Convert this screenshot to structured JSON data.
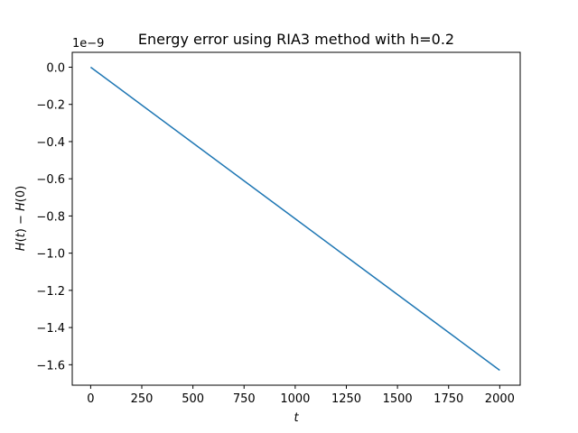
{
  "chart_data": {
    "type": "line",
    "title": "Energy error using RIA3 method with h=0.2",
    "xlabel": "t",
    "ylabel": "H(t) − H(0)",
    "y_offset_label": "1e−9",
    "xlim": [
      -90,
      2100
    ],
    "ylim": [
      -1.71,
      0.08
    ],
    "x_ticks": [
      0,
      250,
      500,
      750,
      1000,
      1250,
      1500,
      1750,
      2000
    ],
    "y_ticks": [
      0.0,
      -0.2,
      -0.4,
      -0.6,
      -0.8,
      -1.0,
      -1.2,
      -1.4,
      -1.6
    ],
    "x_tick_labels": [
      "0",
      "250",
      "500",
      "750",
      "1000",
      "1250",
      "1500",
      "1750",
      "2000"
    ],
    "y_tick_labels": [
      "0.0",
      "−0.2",
      "−0.4",
      "−0.6",
      "−0.8",
      "−1.0",
      "−1.2",
      "−1.4",
      "−1.6"
    ],
    "grid": false,
    "series": [
      {
        "color": "#1f77b4",
        "x": [
          0,
          250,
          500,
          750,
          1000,
          1250,
          1500,
          1750,
          2000
        ],
        "values": [
          0.0,
          -0.2038,
          -0.4075,
          -0.6113,
          -0.815,
          -1.0188,
          -1.2225,
          -1.4263,
          -1.63
        ]
      }
    ]
  }
}
